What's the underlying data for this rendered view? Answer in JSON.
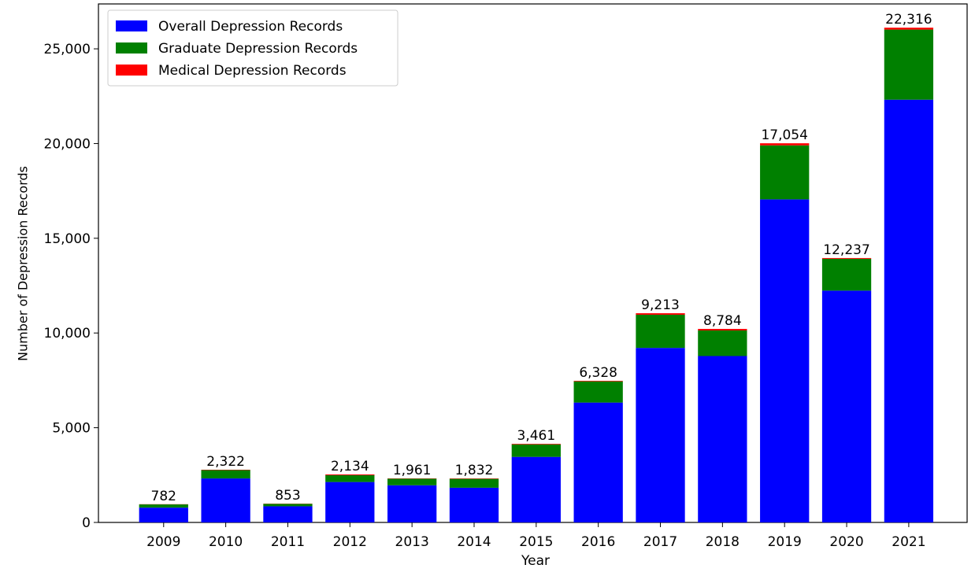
{
  "chart_data": {
    "type": "stacked_bar",
    "x_label": "Year",
    "y_label": "Number of Depression Records",
    "categories": [
      "2009",
      "2010",
      "2011",
      "2012",
      "2013",
      "2014",
      "2015",
      "2016",
      "2017",
      "2018",
      "2019",
      "2020",
      "2021"
    ],
    "series": [
      {
        "name": "Overall Depression Records",
        "color": "#0000ff",
        "values": [
          782,
          2322,
          853,
          2134,
          1961,
          1832,
          3461,
          6328,
          9213,
          8784,
          17054,
          12237,
          22316
        ],
        "value_labels": [
          "782",
          "2,322",
          "853",
          "2,134",
          "1,961",
          "1,832",
          "3,461",
          "6,328",
          "9,213",
          "8,784",
          "17,054",
          "12,237",
          "22,316"
        ]
      },
      {
        "name": "Graduate Depression Records",
        "color": "#008000",
        "values": [
          170,
          440,
          130,
          360,
          350,
          470,
          660,
          1120,
          1750,
          1350,
          2850,
          1680,
          3700
        ]
      },
      {
        "name": "Medical Depression Records",
        "color": "#ff0000",
        "values": [
          10,
          20,
          10,
          40,
          15,
          20,
          30,
          30,
          80,
          80,
          110,
          40,
          100
        ]
      }
    ],
    "ylim": [
      0,
      27370
    ],
    "yticks": [
      0,
      {
        "value": 5000,
        "label": "5,000"
      },
      {
        "value": 10000,
        "label": "10,000"
      },
      {
        "value": 15000,
        "label": "15,000"
      },
      {
        "value": 20000,
        "label": "20,000"
      },
      {
        "value": 25000,
        "label": "25,000"
      }
    ],
    "legend": "upper left"
  }
}
